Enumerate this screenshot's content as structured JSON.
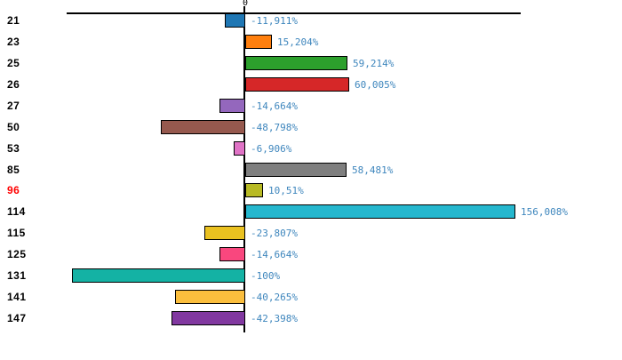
{
  "chart_data": {
    "type": "bar",
    "orientation": "horizontal",
    "title": "",
    "xlabel": "",
    "ylabel": "",
    "grid": false,
    "legend": false,
    "zero_tick_label": "0",
    "categories": [
      "21",
      "23",
      "25",
      "26",
      "27",
      "50",
      "53",
      "85",
      "96",
      "114",
      "115",
      "125",
      "131",
      "141",
      "147"
    ],
    "values": [
      -11.911,
      15.204,
      59.214,
      60.005,
      -14.664,
      -48.798,
      -6.906,
      58.481,
      10.51,
      156.008,
      -23.807,
      -14.664,
      -100,
      -40.265,
      -42.398
    ],
    "value_labels": [
      "-11,911%",
      "15,204%",
      "59,214%",
      "60,005%",
      "-14,664%",
      "-48,798%",
      "-6,906%",
      "58,481%",
      "10,51%",
      "156,008%",
      "-23,807%",
      "-14,664%",
      "-100%",
      "-40,265%",
      "-42,398%"
    ],
    "bar_colors": [
      "#1F77B4",
      "#FF7F0E",
      "#2CA02C",
      "#D62728",
      "#9467BD",
      "#96594E",
      "#E073C6",
      "#7F7F7F",
      "#B8BA24",
      "#25B7CE",
      "#EAC120",
      "#F9477E",
      "#14B2A4",
      "#FBBE3D",
      "#8138A0"
    ],
    "highlight_category_index": 8,
    "xlim_percent": [
      -100,
      160
    ]
  },
  "colors": {
    "background": "#FFFFFF",
    "axis": "#000000",
    "value_label_text": "#3E86BD",
    "category_label_text": "#000000",
    "highlight_category_text": "#FF0000"
  }
}
